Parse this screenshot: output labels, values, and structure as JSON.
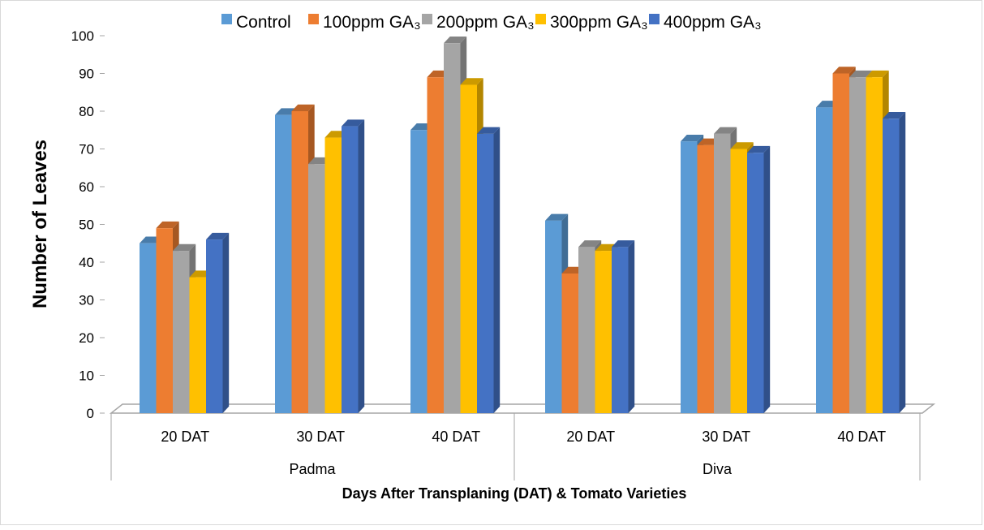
{
  "chart_data": {
    "type": "bar",
    "style": "3d-clustered-column",
    "title": "",
    "xlabel": "Days After Transplaning (DAT) & Tomato Varieties",
    "ylabel": "Number of Leaves",
    "ylim": [
      0,
      100
    ],
    "yticks": [
      0,
      10,
      20,
      30,
      40,
      50,
      60,
      70,
      80,
      90,
      100
    ],
    "legend_position": "top",
    "groups": [
      {
        "label": "Padma",
        "categories": [
          "20 DAT",
          "30 DAT",
          "40 DAT"
        ]
      },
      {
        "label": "Diva",
        "categories": [
          "20 DAT",
          "30 DAT",
          "40 DAT"
        ]
      }
    ],
    "categories": [
      "20 DAT",
      "30 DAT",
      "40 DAT",
      "20 DAT",
      "30 DAT",
      "40 DAT"
    ],
    "series": [
      {
        "name": "Control",
        "color": "#5b9bd5",
        "values": [
          45,
          79,
          75,
          51,
          72,
          81
        ]
      },
      {
        "name": "100ppm GA₃",
        "color": "#ed7d31",
        "values": [
          49,
          80,
          89,
          37,
          71,
          90
        ]
      },
      {
        "name": "200ppm GA₃",
        "color": "#a5a5a5",
        "values": [
          43,
          66,
          98,
          44,
          74,
          89
        ]
      },
      {
        "name": "300ppm GA₃",
        "color": "#ffc000",
        "values": [
          36,
          73,
          87,
          43,
          70,
          89
        ]
      },
      {
        "name": "400ppm GA₃",
        "color": "#4472c4",
        "values": [
          46,
          76,
          74,
          44,
          69,
          78
        ]
      }
    ]
  }
}
